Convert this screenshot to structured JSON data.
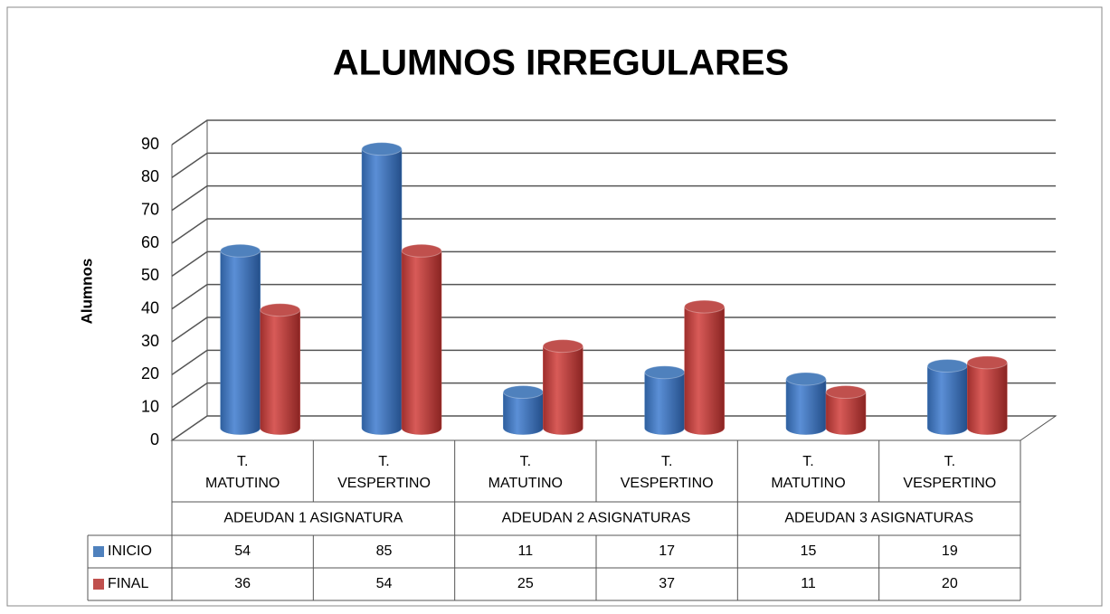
{
  "chart_data": {
    "type": "bar3d",
    "title": "ALUMNOS IRREGULARES",
    "y_label": "Alumnos",
    "categories": [
      "T.\nMATUTINO",
      "T.\nVESPERTINO",
      "T.\nMATUTINO",
      "T.\nVESPERTINO",
      "T.\nMATUTINO",
      "T.\nVESPERTINO"
    ],
    "groups": [
      "ADEUDAN 1 ASIGNATURA",
      "ADEUDAN 2 ASIGNATURAS",
      "ADEUDAN 3 ASIGNATURAS"
    ],
    "series": [
      {
        "name": "INICIO",
        "color": "#4f81bd",
        "values": [
          54,
          85,
          11,
          17,
          15,
          19
        ]
      },
      {
        "name": "FINAL",
        "color": "#c0504d",
        "values": [
          36,
          54,
          25,
          37,
          11,
          20
        ]
      }
    ],
    "ylim": [
      0,
      90
    ],
    "yticks": [
      0,
      10,
      20,
      30,
      40,
      50,
      60,
      70,
      80,
      90
    ],
    "grid": true,
    "data_table": true
  }
}
